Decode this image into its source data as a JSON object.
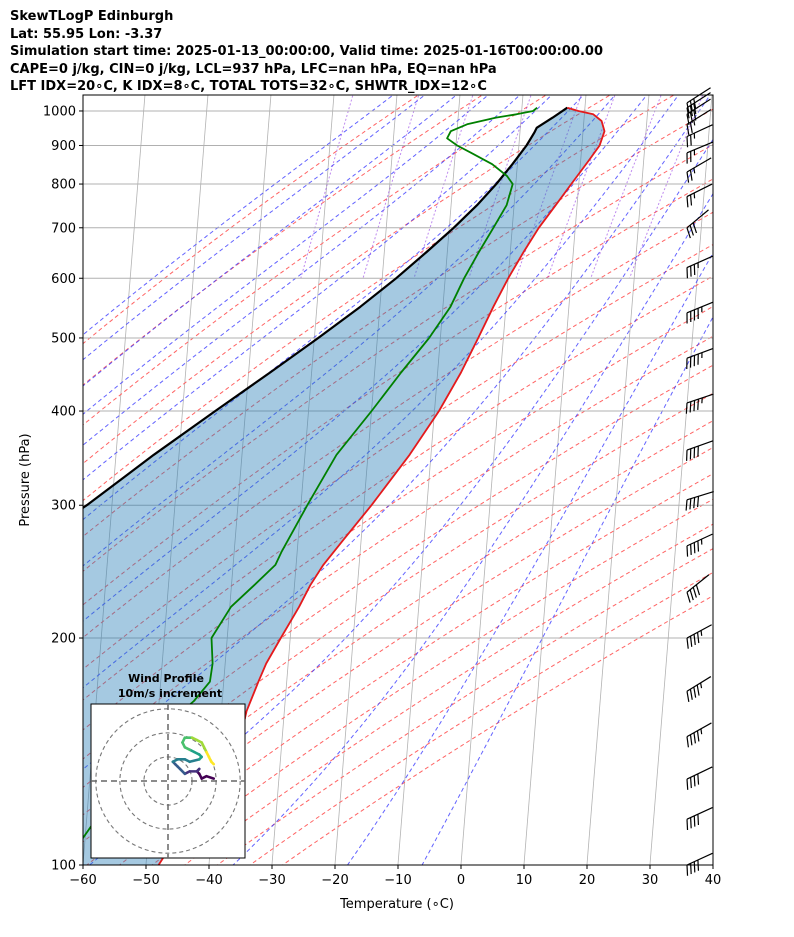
{
  "header": {
    "lines": [
      "SkewTLogP Edinburgh",
      "Lat: 55.95   Lon: -3.37",
      "Simulation start time: 2025-01-13_00:00:00, Valid time: 2025-01-16T00:00:00.00",
      "CAPE=0 j/kg, CIN=0 j/kg, LCL=937 hPa, LFC=nan hPa, EQ=nan hPa",
      "LFT IDX=20∘C, K IDX=8∘C, TOTAL TOTS=32∘C, SHWTR_IDX=12∘C"
    ]
  },
  "chart_data": {
    "type": "line",
    "chart_kind": "skew-T log-P",
    "xlabel": "Temperature (∘C)",
    "ylabel": "Pressure (hPa)",
    "xlim": [
      -60,
      40
    ],
    "ylim": [
      1050,
      100
    ],
    "y_scale": "log",
    "x_ticks": [
      "−60",
      "−50",
      "−40",
      "−30",
      "−20",
      "−10",
      "0",
      "10",
      "20",
      "30",
      "40"
    ],
    "x_tick_values": [
      -60,
      -50,
      -40,
      -30,
      -20,
      -10,
      0,
      10,
      20,
      30,
      40
    ],
    "y_ticks": [
      "1000",
      "900",
      "800",
      "700",
      "600",
      "500",
      "400",
      "300",
      "200",
      "100"
    ],
    "y_tick_values": [
      1000,
      900,
      800,
      700,
      600,
      500,
      400,
      300,
      200,
      100
    ],
    "grid": true,
    "series": [
      {
        "role": "temperature",
        "color": "#e41a1c",
        "points": [
          [
            1010,
            7.2
          ],
          [
            1000,
            9.0
          ],
          [
            990,
            11.4
          ],
          [
            970,
            12.8
          ],
          [
            940,
            13.4
          ],
          [
            900,
            12.8
          ],
          [
            860,
            11.3
          ],
          [
            800,
            8.8
          ],
          [
            750,
            6.6
          ],
          [
            700,
            4.2
          ],
          [
            650,
            2.1
          ],
          [
            600,
            0.0
          ],
          [
            550,
            -2.0
          ],
          [
            500,
            -4.0
          ],
          [
            450,
            -6.3
          ],
          [
            400,
            -9.3
          ],
          [
            350,
            -13.4
          ],
          [
            300,
            -18.8
          ],
          [
            270,
            -22.8
          ],
          [
            250,
            -25.7
          ],
          [
            235,
            -27.5
          ],
          [
            220,
            -29.0
          ],
          [
            200,
            -31.5
          ],
          [
            185,
            -33.5
          ],
          [
            175,
            -34.5
          ],
          [
            160,
            -36.0
          ],
          [
            150,
            -36.5
          ],
          [
            140,
            -38.5
          ],
          [
            125,
            -41.5
          ],
          [
            100,
            -48.0
          ]
        ]
      },
      {
        "role": "dewpoint",
        "color": "#008000",
        "points": [
          [
            1010,
            2.4
          ],
          [
            1000,
            1.8
          ],
          [
            990,
            -0.8
          ],
          [
            980,
            -4.0
          ],
          [
            960,
            -8.5
          ],
          [
            940,
            -11.0
          ],
          [
            920,
            -11.5
          ],
          [
            900,
            -9.8
          ],
          [
            880,
            -7.5
          ],
          [
            850,
            -4.0
          ],
          [
            820,
            -1.5
          ],
          [
            800,
            -0.5
          ],
          [
            750,
            -1.2
          ],
          [
            700,
            -3.0
          ],
          [
            650,
            -5.0
          ],
          [
            600,
            -7.0
          ],
          [
            550,
            -8.8
          ],
          [
            500,
            -11.8
          ],
          [
            450,
            -15.8
          ],
          [
            400,
            -20.0
          ],
          [
            350,
            -25.0
          ],
          [
            300,
            -29.0
          ],
          [
            260,
            -32.5
          ],
          [
            250,
            -33.3
          ],
          [
            235,
            -36.4
          ],
          [
            220,
            -39.8
          ],
          [
            200,
            -42.5
          ],
          [
            185,
            -42.0
          ],
          [
            175,
            -42.2
          ],
          [
            165,
            -44.5
          ],
          [
            155,
            -48.0
          ],
          [
            140,
            -52.5
          ],
          [
            130,
            -56.0
          ],
          [
            115,
            -58.5
          ],
          [
            100,
            -63.0
          ]
        ]
      },
      {
        "role": "parcel",
        "color": "#000000",
        "points": [
          [
            1010,
            7.2
          ],
          [
            980,
            5.0
          ],
          [
            950,
            2.6
          ],
          [
            937,
            2.3
          ],
          [
            900,
            1.2
          ],
          [
            850,
            -0.8
          ],
          [
            800,
            -3.1
          ],
          [
            750,
            -5.9
          ],
          [
            700,
            -9.3
          ],
          [
            650,
            -13.3
          ],
          [
            600,
            -17.8
          ],
          [
            550,
            -23.1
          ],
          [
            500,
            -29.4
          ],
          [
            450,
            -36.6
          ],
          [
            400,
            -44.8
          ],
          [
            350,
            -54.0
          ],
          [
            300,
            -64.0
          ],
          [
            250,
            -77.3
          ],
          [
            200,
            -93.0
          ],
          [
            150,
            -113.0
          ],
          [
            100,
            -141.0
          ]
        ]
      }
    ],
    "wind_barbs": {
      "color": "#000000",
      "levels": [
        {
          "p": 1025,
          "u": 14,
          "v": 9
        },
        {
          "p": 1010,
          "u": 14,
          "v": 9
        },
        {
          "p": 990,
          "u": 14,
          "v": 9
        },
        {
          "p": 960,
          "u": 13,
          "v": 8
        },
        {
          "p": 925,
          "u": 13,
          "v": 6
        },
        {
          "p": 880,
          "u": 12,
          "v": 5
        },
        {
          "p": 830,
          "u": 12,
          "v": 7
        },
        {
          "p": 770,
          "u": 12,
          "v": 6
        },
        {
          "p": 700,
          "u": 12,
          "v": 10
        },
        {
          "p": 620,
          "u": 18,
          "v": 8
        },
        {
          "p": 540,
          "u": 22,
          "v": 9
        },
        {
          "p": 470,
          "u": 24,
          "v": 9
        },
        {
          "p": 410,
          "u": 24,
          "v": 8
        },
        {
          "p": 355,
          "u": 25,
          "v": 9
        },
        {
          "p": 305,
          "u": 26,
          "v": 8
        },
        {
          "p": 265,
          "u": 26,
          "v": 12
        },
        {
          "p": 230,
          "u": 25,
          "v": 20
        },
        {
          "p": 200,
          "u": 26,
          "v": 14
        },
        {
          "p": 170,
          "u": 26,
          "v": 16
        },
        {
          "p": 148,
          "u": 25,
          "v": 14
        },
        {
          "p": 130,
          "u": 25,
          "v": 12
        },
        {
          "p": 115,
          "u": 24,
          "v": 11
        },
        {
          "p": 100,
          "u": 24,
          "v": 11
        }
      ]
    },
    "hodograph": {
      "title": "Wind Profile",
      "subtitle": "10m/s increment",
      "rings": [
        10,
        20,
        30
      ],
      "range": 32,
      "points": [
        [
          19,
          1
        ],
        [
          16,
          2
        ],
        [
          14,
          1
        ],
        [
          13,
          3
        ],
        [
          12,
          4
        ],
        [
          13,
          5
        ],
        [
          12,
          4
        ],
        [
          9,
          4
        ],
        [
          7,
          3
        ],
        [
          5,
          5
        ],
        [
          4,
          6
        ],
        [
          3,
          7
        ],
        [
          2,
          8
        ],
        [
          4,
          9
        ],
        [
          7,
          9
        ],
        [
          9,
          8
        ],
        [
          13,
          9
        ],
        [
          14,
          10
        ],
        [
          13,
          11
        ],
        [
          11,
          12
        ],
        [
          9,
          13
        ],
        [
          7,
          14
        ],
        [
          6,
          16
        ],
        [
          7,
          18
        ],
        [
          10,
          18
        ],
        [
          12,
          17
        ],
        [
          14,
          16
        ],
        [
          15,
          14
        ],
        [
          16,
          12
        ],
        [
          17,
          10
        ],
        [
          18,
          8
        ],
        [
          19,
          7
        ]
      ]
    }
  }
}
